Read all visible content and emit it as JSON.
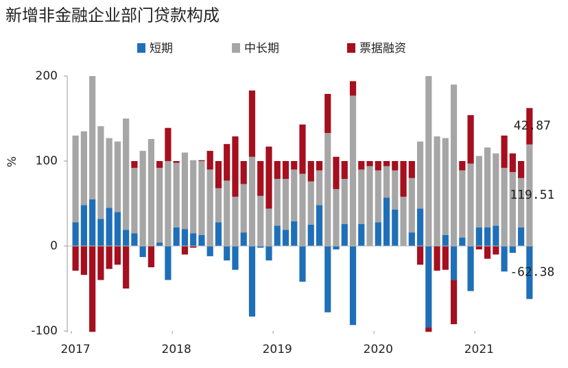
{
  "chart_data": {
    "type": "bar",
    "stacked": true,
    "title": "新增非金融企业部门贷款构成",
    "y_label": "%",
    "legend": "top",
    "categories": [
      "2017",
      null,
      null,
      null,
      null,
      null,
      null,
      null,
      null,
      null,
      null,
      null,
      "2018",
      null,
      null,
      null,
      null,
      null,
      null,
      null,
      null,
      null,
      null,
      null,
      "2019",
      null,
      null,
      null,
      null,
      null,
      null,
      null,
      null,
      null,
      null,
      null,
      "2020",
      null,
      null,
      null,
      null,
      null,
      null,
      null,
      null,
      null,
      null,
      null,
      "2021",
      null,
      null,
      null,
      null,
      null,
      null
    ],
    "series": [
      {
        "name": "短期",
        "color": "#1f6fb8",
        "values": [
          28,
          48,
          55,
          32,
          45,
          40,
          19,
          15,
          -13,
          0,
          4,
          -40,
          22,
          20,
          15,
          13,
          -12,
          28,
          -17,
          -28,
          16,
          -83,
          -2,
          -17,
          24,
          19,
          29,
          -42,
          25,
          48,
          -78,
          -4,
          26,
          -93,
          26,
          0,
          28,
          57,
          43,
          0,
          16,
          44,
          -96,
          0,
          13,
          -40,
          10,
          -53,
          22,
          22,
          24,
          -30,
          -8,
          22,
          -62.38
        ]
      },
      {
        "name": "中长期",
        "color": "#a6a6a6",
        "values": [
          102,
          87,
          145,
          109,
          82,
          83,
          131,
          77,
          112,
          126,
          88,
          100,
          76,
          90,
          86,
          87,
          90,
          40,
          77,
          58,
          57,
          105,
          59,
          44,
          55,
          60,
          61,
          85,
          51,
          41,
          133,
          67,
          53,
          177,
          64,
          94,
          61,
          37,
          46,
          58,
          64,
          79,
          200,
          129,
          114,
          190,
          79,
          97,
          84,
          94,
          85,
          92,
          87,
          58,
          119.51
        ]
      },
      {
        "name": "票据融资",
        "color": "#a50f1e",
        "values": [
          -29,
          -34,
          -101,
          -40,
          -27,
          -22,
          -50,
          8,
          0,
          -25,
          8,
          39,
          2,
          -10,
          -2,
          1,
          22,
          32,
          43,
          71,
          27,
          78,
          41,
          73,
          21,
          21,
          10,
          58,
          24,
          11,
          46,
          38,
          21,
          17,
          10,
          6,
          11,
          6,
          11,
          42,
          20,
          -22,
          -5,
          -29,
          -28,
          -52,
          11,
          57,
          -4,
          -15,
          -10,
          38,
          22,
          20,
          42.87
        ]
      }
    ],
    "ylim": [
      -100,
      200
    ],
    "yticks": [
      -100,
      0,
      100,
      200
    ]
  }
}
